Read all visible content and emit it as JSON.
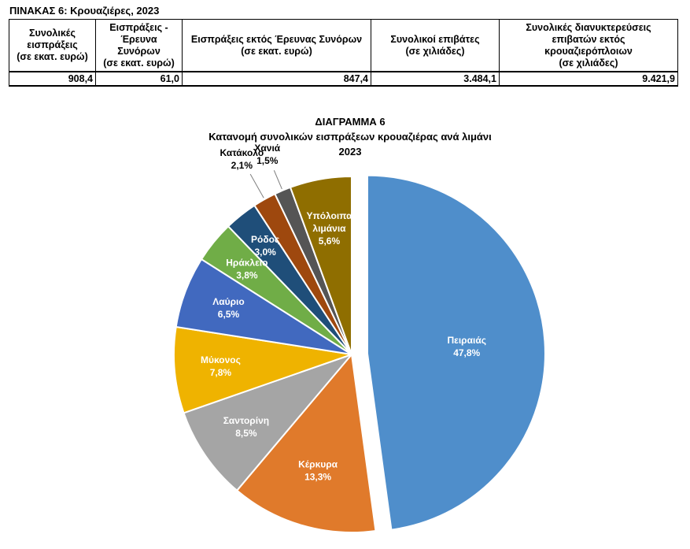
{
  "table": {
    "title": "ΠΙΝΑΚΑΣ 6: Κρουαζιέρες, 2023",
    "headers": [
      [
        "Συνολικές",
        "εισπράξεις",
        "(σε εκατ. ευρώ)"
      ],
      [
        "Εισπράξεις -",
        "Έρευνα Συνόρων",
        "(σε εκατ. ευρώ)"
      ],
      [
        "Εισπράξεις εκτός Έρευνας Συνόρων",
        "(σε εκατ. ευρώ)"
      ],
      [
        "Συνολικοί επιβάτες",
        "(σε χιλιάδες)"
      ],
      [
        "Συνολικές διανυκτερεύσεις",
        "επιβατών εκτός",
        "κρουαζιερόπλοιων",
        "(σε χιλιάδες)"
      ]
    ],
    "values": [
      "908,4",
      "61,0",
      "847,4",
      "3.484,1",
      "9.421,9"
    ]
  },
  "chart_data": {
    "type": "pie",
    "title": "ΔΙΑΓΡΑΜΜΑ 6",
    "subtitle": "Κατανομή συνολικών εισπράξεων κρουαζιέρας ανά λιμάνι",
    "year": "2023",
    "unit": "%",
    "slices": [
      {
        "name": "Πειραιάς",
        "value": 47.8,
        "label": "47,8%",
        "color": "#4f8ecb",
        "exploded": true,
        "labelColor": "#ffffff"
      },
      {
        "name": "Κέρκυρα",
        "value": 13.3,
        "label": "13,3%",
        "color": "#e07a2b",
        "exploded": false,
        "labelColor": "#ffffff"
      },
      {
        "name": "Σαντορίνη",
        "value": 8.5,
        "label": "8,5%",
        "color": "#a5a5a5",
        "exploded": false,
        "labelColor": "#ffffff"
      },
      {
        "name": "Μύκονος",
        "value": 7.8,
        "label": "7,8%",
        "color": "#efb300",
        "exploded": false,
        "labelColor": "#ffffff"
      },
      {
        "name": "Λαύριο",
        "value": 6.5,
        "label": "6,5%",
        "color": "#4169bf",
        "exploded": false,
        "labelColor": "#ffffff"
      },
      {
        "name": "Ηράκλειο",
        "value": 3.8,
        "label": "3,8%",
        "color": "#70ad47",
        "exploded": false,
        "labelColor": "#ffffff"
      },
      {
        "name": "Ρόδος",
        "value": 3.0,
        "label": "3,0%",
        "color": "#1f4e79",
        "exploded": false,
        "labelColor": "#ffffff"
      },
      {
        "name": "Κατάκολο",
        "value": 2.1,
        "label": "2,1%",
        "color": "#9e480e",
        "exploded": false,
        "labelColor": "#000000",
        "outside": true
      },
      {
        "name": "Χανιά",
        "value": 1.5,
        "label": "1,5%",
        "color": "#555555",
        "exploded": false,
        "labelColor": "#000000",
        "outside": true
      },
      {
        "name": "Υπόλοιπα λιμάνια",
        "value": 5.6,
        "label": "5,6%",
        "color": "#8f6e00",
        "exploded": false,
        "labelColor": "#ffffff"
      }
    ]
  }
}
